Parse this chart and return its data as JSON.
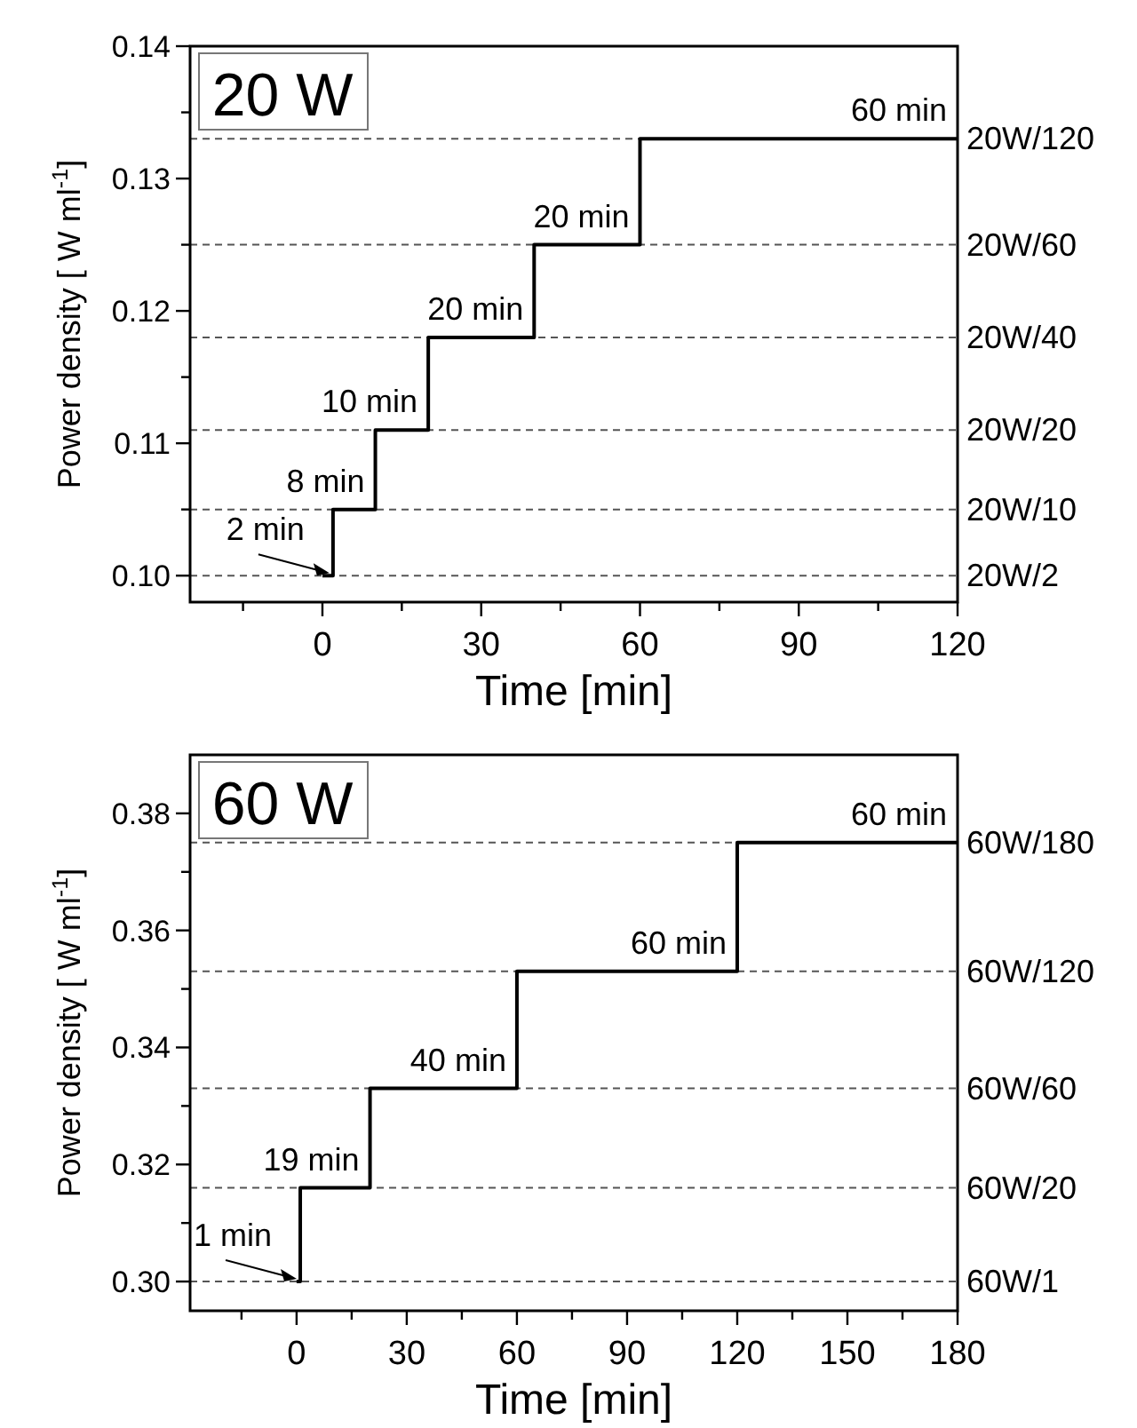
{
  "chart_data": [
    {
      "type": "step",
      "title": "20 W",
      "xlabel": "Time [min]",
      "ylabel": "Power density [ W ml$^{-1}$]",
      "x": [
        0,
        2,
        10,
        20,
        40,
        60,
        120
      ],
      "series": [
        {
          "color": "#000000",
          "values": [
            0.1,
            0.105,
            0.111,
            0.118,
            0.125,
            0.133,
            0.133
          ]
        }
      ],
      "xlim": [
        -25,
        120
      ],
      "xticks": [
        {
          "value": -15,
          "label": null
        },
        0,
        {
          "value": 15,
          "label": null
        },
        30,
        {
          "value": 45,
          "label": null
        },
        60,
        {
          "value": 75,
          "label": null
        },
        90,
        {
          "value": 105,
          "label": null
        },
        120
      ],
      "ylim": [
        0.098,
        0.14
      ],
      "yticks": [
        {
          "value": 0.1,
          "label": "0.10"
        },
        {
          "value": 0.105,
          "label": null
        },
        0.11,
        {
          "value": 0.115,
          "label": null
        },
        0.12,
        {
          "value": 0.125,
          "label": null
        },
        0.13,
        {
          "value": 0.135,
          "label": null
        },
        0.14
      ],
      "grid": false,
      "line_style": "solid",
      "marker": "none",
      "ref_lines": [
        {
          "axis": "y",
          "value": 0.1,
          "label": "20W/2",
          "color": "#555555",
          "line_style": "dashed"
        },
        {
          "axis": "y",
          "value": 0.105,
          "label": "20W/10",
          "color": "#555555",
          "line_style": "dashed"
        },
        {
          "axis": "y",
          "value": 0.111,
          "label": "20W/20",
          "color": "#555555",
          "line_style": "dashed"
        },
        {
          "axis": "y",
          "value": 0.118,
          "label": "20W/40",
          "color": "#555555",
          "line_style": "dashed"
        },
        {
          "axis": "y",
          "value": 0.125,
          "label": "20W/60",
          "color": "#555555",
          "line_style": "dashed"
        },
        {
          "axis": "y",
          "value": 0.133,
          "label": "20W/120",
          "color": "#555555",
          "line_style": "dashed"
        }
      ],
      "annotations": [
        {
          "text": "2 min",
          "x": 2,
          "y": 0.1
        },
        {
          "text": "8 min",
          "x": 10,
          "y": 0.105
        },
        {
          "text": "10 min",
          "x": 20,
          "y": 0.111
        },
        {
          "text": "20 min",
          "x": 40,
          "y": 0.118
        },
        {
          "text": "20 min",
          "x": 60,
          "y": 0.125
        },
        {
          "text": "60 min",
          "x": 120,
          "y": 0.133
        }
      ]
    },
    {
      "type": "step",
      "title": "60 W",
      "xlabel": "Time [min]",
      "ylabel": "Power density [ W ml$^{-1}$]",
      "x": [
        0,
        1,
        20,
        60,
        120,
        180
      ],
      "series": [
        {
          "color": "#000000",
          "values": [
            0.3,
            0.316,
            0.333,
            0.353,
            0.375,
            0.375
          ]
        }
      ],
      "xlim": [
        -29,
        180
      ],
      "xticks": [
        {
          "value": -15,
          "label": null
        },
        0,
        {
          "value": 15,
          "label": null
        },
        30,
        {
          "value": 45,
          "label": null
        },
        60,
        {
          "value": 75,
          "label": null
        },
        90,
        {
          "value": 105,
          "label": null
        },
        120,
        {
          "value": 135,
          "label": null
        },
        150,
        {
          "value": 165,
          "label": null
        },
        180
      ],
      "ylim": [
        0.295,
        0.39
      ],
      "yticks": [
        {
          "value": 0.3,
          "label": "0.30"
        },
        {
          "value": 0.31,
          "label": null
        },
        {
          "value": 0.32,
          "label": "0.32"
        },
        {
          "value": 0.33,
          "label": null
        },
        {
          "value": 0.34,
          "label": "0.34"
        },
        {
          "value": 0.35,
          "label": null
        },
        {
          "value": 0.36,
          "label": "0.36"
        },
        {
          "value": 0.37,
          "label": null
        },
        {
          "value": 0.38,
          "label": "0.38"
        }
      ],
      "grid": false,
      "line_style": "solid",
      "marker": "none",
      "ref_lines": [
        {
          "axis": "y",
          "value": 0.3,
          "label": "60W/1",
          "color": "#555555",
          "line_style": "dashed"
        },
        {
          "axis": "y",
          "value": 0.316,
          "label": "60W/20",
          "color": "#555555",
          "line_style": "dashed"
        },
        {
          "axis": "y",
          "value": 0.333,
          "label": "60W/60",
          "color": "#555555",
          "line_style": "dashed"
        },
        {
          "axis": "y",
          "value": 0.353,
          "label": "60W/120",
          "color": "#555555",
          "line_style": "dashed"
        },
        {
          "axis": "y",
          "value": 0.375,
          "label": "60W/180",
          "color": "#555555",
          "line_style": "dashed"
        }
      ],
      "annotations": [
        {
          "text": "1 min",
          "x": 1,
          "y": 0.3
        },
        {
          "text": "19 min",
          "x": 20,
          "y": 0.316
        },
        {
          "text": "40 min",
          "x": 60,
          "y": 0.333
        },
        {
          "text": "60 min",
          "x": 120,
          "y": 0.353
        },
        {
          "text": "60 min",
          "x": 180,
          "y": 0.375
        }
      ]
    }
  ]
}
